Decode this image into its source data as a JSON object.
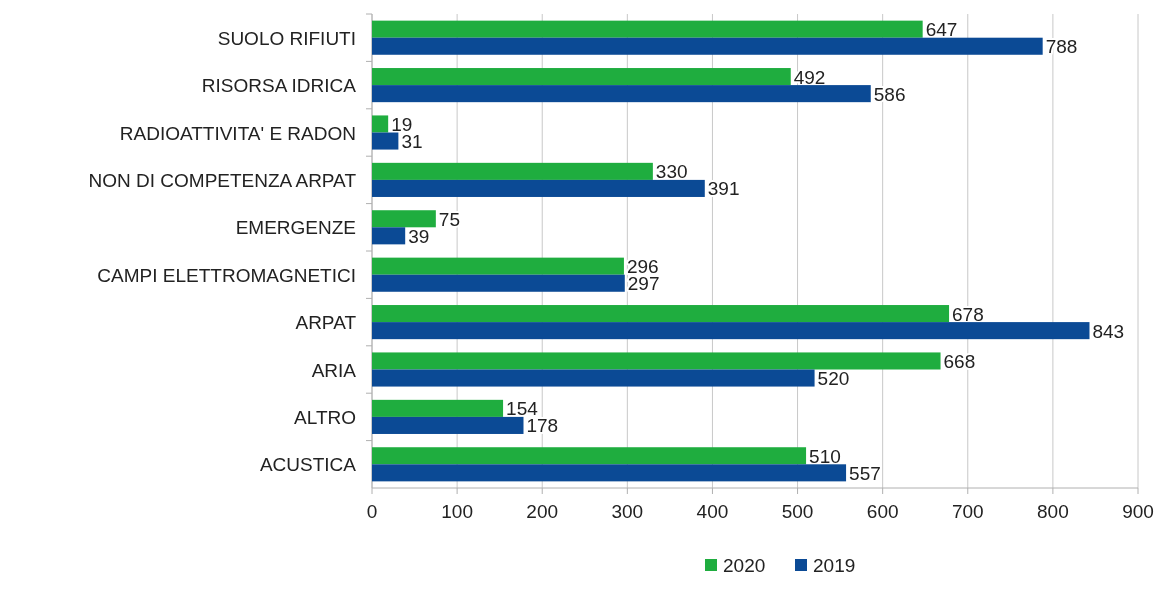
{
  "chart_data": {
    "type": "bar",
    "orientation": "horizontal",
    "categories": [
      "SUOLO RIFIUTI",
      "RISORSA IDRICA",
      "RADIOATTIVITA' E RADON",
      "NON  DI COMPETENZA ARPAT",
      "EMERGENZE",
      "CAMPI ELETTROMAGNETICI",
      "ARPAT",
      "ARIA",
      "ALTRO",
      "ACUSTICA"
    ],
    "series": [
      {
        "name": "2020",
        "color": "#1fad3f",
        "values": [
          647,
          492,
          19,
          330,
          75,
          296,
          678,
          668,
          154,
          510
        ]
      },
      {
        "name": "2019",
        "color": "#0b4a95",
        "values": [
          788,
          586,
          31,
          391,
          39,
          297,
          843,
          520,
          178,
          557
        ]
      }
    ],
    "xlim": [
      0,
      900
    ],
    "xticks": [
      0,
      100,
      200,
      300,
      400,
      500,
      600,
      700,
      800,
      900
    ],
    "grid": "x",
    "legend": "bottom",
    "data_labels": true
  }
}
